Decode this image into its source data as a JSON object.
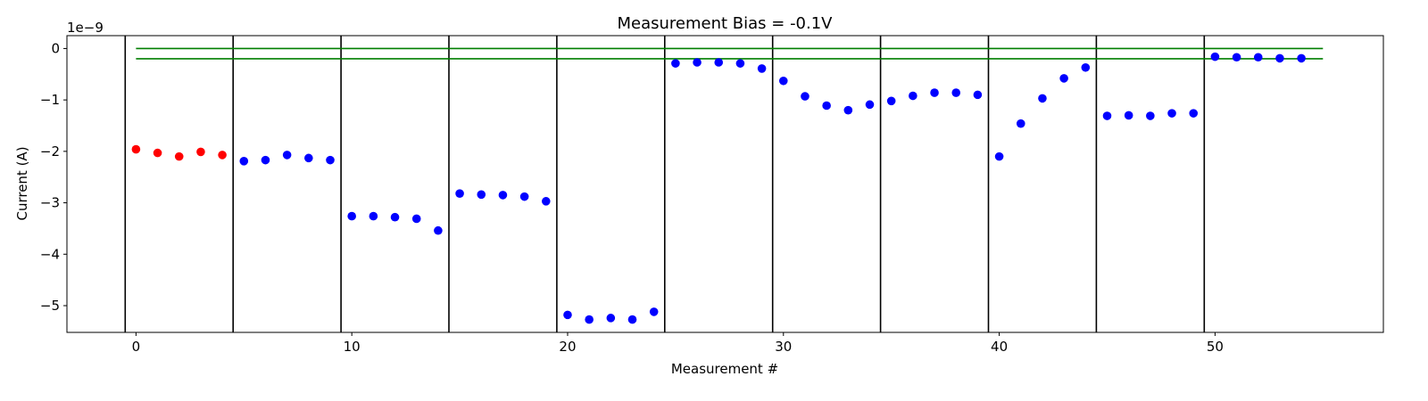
{
  "chart_data": {
    "type": "scatter",
    "title": "Measurement Bias = -0.1V",
    "xlabel": "Measurement #",
    "ylabel": "Current (A)",
    "y_scale_label": "1e−9",
    "xlim": [
      -3.2,
      57.8
    ],
    "ylim": [
      -5.52,
      0.25
    ],
    "xticks": [
      0,
      10,
      20,
      30,
      40,
      50
    ],
    "yticks": [
      0,
      -1,
      -2,
      -3,
      -4,
      -5
    ],
    "ytick_labels": [
      "0",
      "−1",
      "−2",
      "−3",
      "−4",
      "−5"
    ],
    "grid": false,
    "separators": [
      -0.5,
      4.5,
      9.5,
      14.5,
      19.5,
      24.5,
      29.5,
      34.5,
      39.5,
      44.5,
      49.5
    ],
    "reference_lines": {
      "x_range": [
        0,
        55
      ],
      "y_values": [
        0,
        -0.2
      ],
      "color": "#007f00"
    },
    "series": [
      {
        "color": "#ff0000",
        "x": [
          0,
          1,
          2,
          3,
          4
        ],
        "y": [
          -1.96,
          -2.03,
          -2.1,
          -2.01,
          -2.07
        ]
      },
      {
        "color": "#0000ff",
        "x": [
          5,
          6,
          7,
          8,
          9,
          10,
          11,
          12,
          13,
          14,
          15,
          16,
          17,
          18,
          19,
          20,
          21,
          22,
          23,
          24,
          25,
          26,
          27,
          28,
          29,
          30,
          31,
          32,
          33,
          34,
          35,
          36,
          37,
          38,
          39,
          40,
          41,
          42,
          43,
          44,
          45,
          46,
          47,
          48,
          49,
          50,
          51,
          52,
          53,
          54
        ],
        "y": [
          -2.19,
          -2.17,
          -2.07,
          -2.13,
          -2.17,
          -3.26,
          -3.26,
          -3.28,
          -3.31,
          -3.54,
          -2.82,
          -2.84,
          -2.85,
          -2.88,
          -2.97,
          -5.18,
          -5.27,
          -5.24,
          -5.27,
          -5.12,
          -0.29,
          -0.27,
          -0.27,
          -0.29,
          -0.39,
          -0.63,
          -0.93,
          -1.11,
          -1.2,
          -1.09,
          -1.02,
          -0.92,
          -0.86,
          -0.86,
          -0.9,
          -2.1,
          -1.46,
          -0.97,
          -0.58,
          -0.37,
          -1.31,
          -1.3,
          -1.31,
          -1.26,
          -1.26,
          -0.16,
          -0.17,
          -0.17,
          -0.19,
          -0.19
        ]
      }
    ]
  }
}
